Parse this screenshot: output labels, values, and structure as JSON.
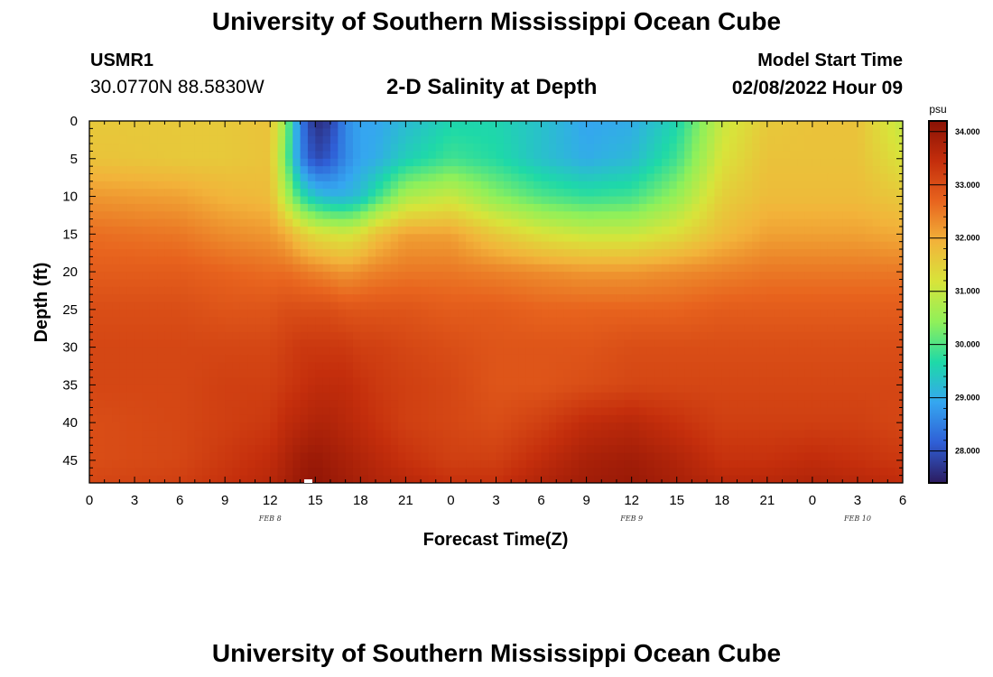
{
  "header": {
    "title": "University of Southern Mississippi Ocean Cube",
    "station_id": "USMR1",
    "coords": "30.0770N  88.5830W",
    "plot_title": "2-D Salinity at Depth",
    "model_start_label": "Model Start Time",
    "model_start_value": "02/08/2022 Hour 09"
  },
  "footer": {
    "title_repeat": "University of Southern Mississippi Ocean Cube"
  },
  "chart_data": {
    "type": "heatmap",
    "title": "2-D Salinity at Depth",
    "xlabel": "Forecast Time(Z)",
    "ylabel": "Depth (ft)",
    "x_tick_labels": [
      "0",
      "3",
      "6",
      "9",
      "12",
      "15",
      "18",
      "21",
      "0",
      "3",
      "6",
      "9",
      "12",
      "15",
      "18",
      "21",
      "0",
      "3",
      "6"
    ],
    "x_hours": [
      0,
      3,
      6,
      9,
      12,
      15,
      18,
      21,
      24,
      27,
      30,
      33,
      36,
      39,
      42,
      45,
      48,
      51,
      54
    ],
    "xlim": [
      0,
      54
    ],
    "date_labels": [
      {
        "text": "FEB 8",
        "hour": 12
      },
      {
        "text": "FEB 9",
        "hour": 36
      },
      {
        "text": "FEB 10",
        "hour": 51
      }
    ],
    "y_ticks": [
      0,
      5,
      10,
      15,
      20,
      25,
      30,
      35,
      40,
      45
    ],
    "ylim": [
      0,
      48
    ],
    "y_inverted": true,
    "colorbar": {
      "unit": "psu",
      "range": [
        27.4,
        34.2
      ],
      "tick_values": [
        28,
        29,
        30,
        31,
        32,
        33,
        34
      ],
      "tick_labels": [
        "28.000",
        "29.000",
        "30.000",
        "31.000",
        "32.000",
        "33.000",
        "34.000"
      ],
      "colors": [
        "#2c1b5e",
        "#2f5fd6",
        "#35a6f0",
        "#1ed9a8",
        "#8ff05a",
        "#d8e43a",
        "#f2b33a",
        "#e8641e",
        "#c42e0c",
        "#8a1205"
      ]
    },
    "description_grid": {
      "note": "salinity (psu) sampled at forecast hours (rows=depth ft, cols=hour)",
      "depths_ft": [
        0,
        5,
        10,
        15,
        20,
        25,
        30,
        35,
        40,
        45,
        48
      ],
      "hours": [
        0,
        6,
        9,
        12,
        13,
        14,
        15,
        16,
        17,
        18,
        19,
        21,
        24,
        27,
        30,
        33,
        36,
        39,
        42,
        45,
        48,
        51,
        54
      ],
      "values": [
        [
          31.6,
          31.6,
          31.6,
          31.7,
          30.5,
          28.5,
          27.6,
          27.8,
          28.6,
          28.9,
          28.9,
          29.2,
          29.6,
          29.6,
          29.3,
          28.9,
          29.0,
          29.6,
          31.0,
          31.6,
          31.7,
          31.7,
          30.9
        ],
        [
          31.7,
          31.6,
          31.6,
          31.7,
          30.3,
          28.6,
          27.9,
          28.1,
          28.6,
          28.9,
          29.0,
          29.5,
          29.9,
          29.7,
          29.3,
          29.0,
          29.2,
          29.9,
          31.2,
          31.7,
          31.7,
          31.7,
          31.2
        ],
        [
          32.2,
          32.1,
          31.9,
          31.8,
          30.8,
          29.8,
          29.3,
          29.1,
          29.1,
          29.3,
          29.8,
          30.7,
          31.0,
          30.4,
          30.0,
          29.8,
          29.9,
          30.5,
          31.5,
          31.8,
          31.8,
          31.8,
          31.6
        ],
        [
          32.6,
          32.5,
          32.3,
          32.2,
          32.0,
          31.6,
          31.3,
          31.2,
          31.1,
          31.3,
          31.7,
          32.1,
          32.1,
          31.6,
          31.2,
          31.0,
          31.0,
          31.3,
          31.8,
          32.1,
          32.1,
          32.1,
          32.0
        ],
        [
          32.8,
          32.8,
          32.7,
          32.6,
          32.6,
          32.5,
          32.4,
          32.3,
          32.2,
          32.3,
          32.4,
          32.5,
          32.5,
          32.4,
          32.3,
          32.2,
          32.2,
          32.3,
          32.4,
          32.5,
          32.5,
          32.5,
          32.5
        ],
        [
          33.0,
          33.0,
          32.9,
          32.9,
          33.0,
          33.0,
          33.0,
          33.0,
          32.9,
          32.9,
          32.9,
          32.9,
          32.8,
          32.8,
          32.7,
          32.7,
          32.7,
          32.7,
          32.8,
          32.8,
          32.8,
          32.8,
          32.8
        ],
        [
          33.1,
          33.1,
          33.1,
          33.1,
          33.2,
          33.3,
          33.3,
          33.3,
          33.3,
          33.2,
          33.2,
          33.1,
          33.0,
          32.9,
          32.9,
          32.9,
          33.0,
          33.0,
          33.0,
          33.0,
          33.0,
          33.0,
          33.0
        ],
        [
          33.1,
          33.1,
          33.2,
          33.2,
          33.3,
          33.4,
          33.5,
          33.5,
          33.5,
          33.4,
          33.3,
          33.2,
          33.1,
          32.9,
          32.9,
          33.0,
          33.1,
          33.1,
          33.1,
          33.1,
          33.1,
          33.1,
          33.1
        ],
        [
          33.0,
          33.1,
          33.2,
          33.3,
          33.5,
          33.6,
          33.7,
          33.7,
          33.6,
          33.5,
          33.4,
          33.2,
          33.1,
          33.0,
          33.2,
          33.5,
          33.6,
          33.4,
          33.2,
          33.2,
          33.2,
          33.2,
          33.1
        ],
        [
          33.0,
          33.1,
          33.3,
          33.5,
          33.7,
          33.9,
          34.0,
          33.9,
          33.8,
          33.7,
          33.6,
          33.4,
          33.2,
          33.2,
          33.5,
          33.8,
          33.9,
          33.7,
          33.4,
          33.4,
          33.5,
          33.4,
          33.3
        ],
        [
          33.1,
          33.2,
          33.4,
          33.6,
          33.8,
          34.0,
          34.1,
          34.0,
          33.9,
          33.8,
          33.7,
          33.6,
          33.4,
          33.4,
          33.7,
          33.9,
          34.0,
          33.8,
          33.6,
          33.6,
          33.7,
          33.6,
          33.5
        ]
      ]
    }
  }
}
